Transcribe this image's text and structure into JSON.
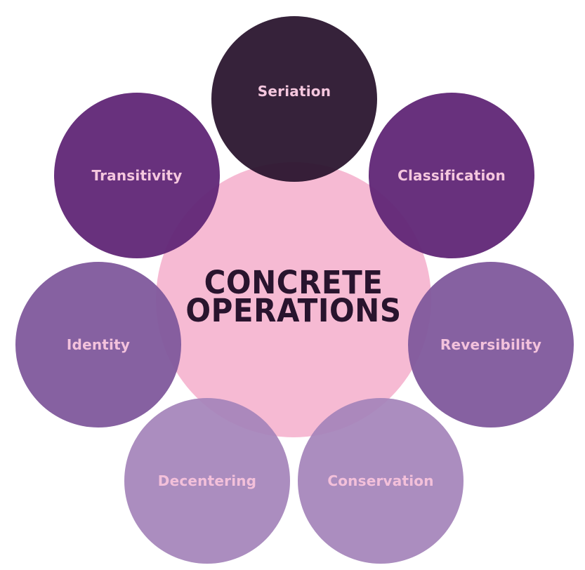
{
  "diagram": {
    "center": {
      "line1": "CONCRETE",
      "line2": "OPERATIONS",
      "color": "#f6bad3"
    },
    "nodes": [
      {
        "id": "seriation",
        "label": "Seriation",
        "color": "#29142e"
      },
      {
        "id": "classification",
        "label": "Classification",
        "color": "#602676"
      },
      {
        "id": "reversibility",
        "label": "Reversibility",
        "color": "#80589c"
      },
      {
        "id": "conservation",
        "label": "Conservation",
        "color": "#a584ba"
      },
      {
        "id": "decentering",
        "label": "Decentering",
        "color": "#a584ba"
      },
      {
        "id": "identity",
        "label": "Identity",
        "color": "#80589c"
      },
      {
        "id": "transitivity",
        "label": "Transitivity",
        "color": "#602676"
      }
    ]
  }
}
